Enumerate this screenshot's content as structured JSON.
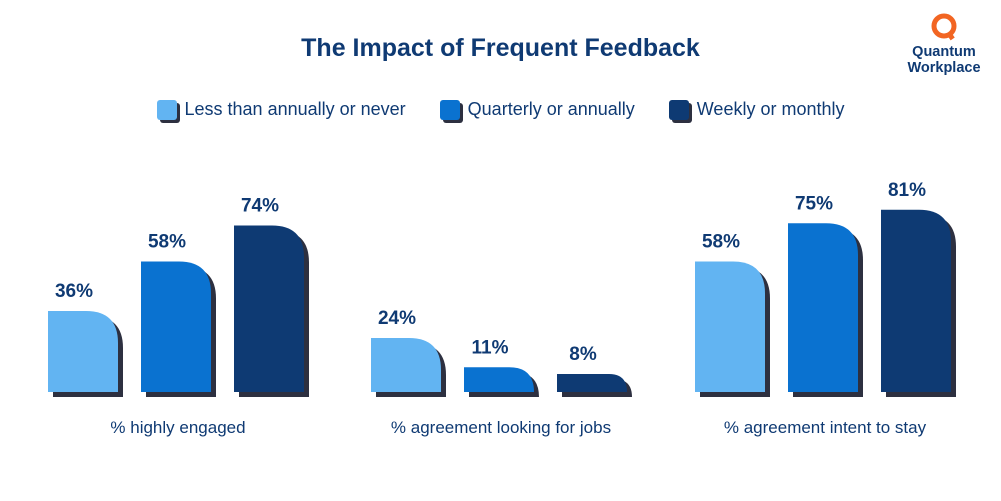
{
  "chart_data": {
    "type": "bar",
    "title": "The Impact of Frequent Feedback",
    "categories": [
      "% highly engaged",
      "% agreement looking for jobs",
      "% agreement intent to stay"
    ],
    "series": [
      {
        "name": "Less than annually or never",
        "values": [
          36,
          24,
          58
        ],
        "labels": [
          "36%",
          "24%",
          "58%"
        ],
        "color": "#62b4f2"
      },
      {
        "name": "Quarterly or annually",
        "values": [
          58,
          11,
          75
        ],
        "labels": [
          "58%",
          "11%",
          "75%"
        ],
        "color": "#0a72d0"
      },
      {
        "name": "Weekly or monthly",
        "values": [
          74,
          8,
          81
        ],
        "labels": [
          "74%",
          "8%",
          "81%"
        ],
        "color": "#0e3a73"
      }
    ],
    "ylim": [
      0,
      100
    ],
    "legend_position": "top",
    "grid": false
  },
  "logo": {
    "line1": "Quantum",
    "line2": "Workplace",
    "accent": "#f26522"
  },
  "colors": {
    "text": "#0f3a73",
    "shadow": "#2d3040"
  }
}
